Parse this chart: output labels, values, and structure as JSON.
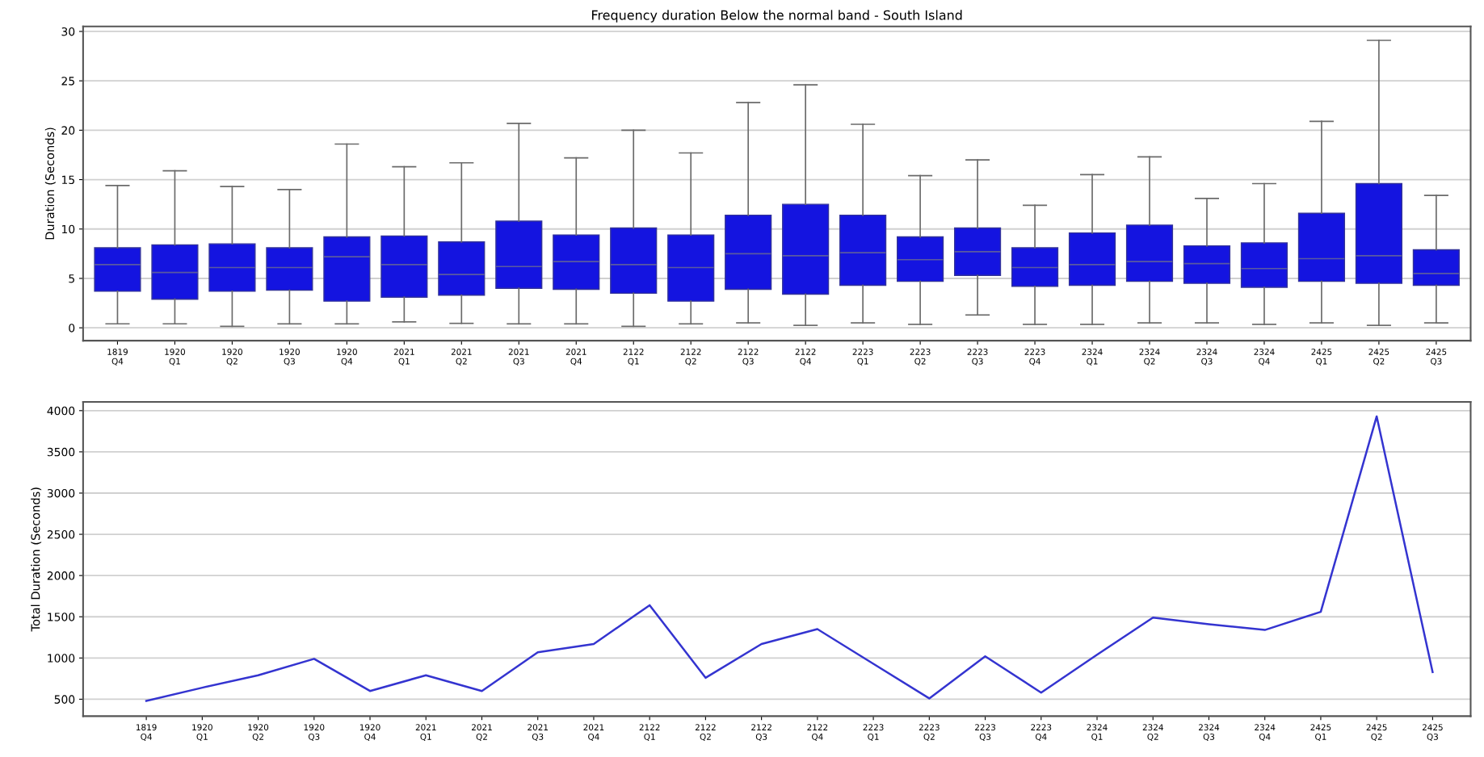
{
  "chart_data": [
    {
      "type": "box",
      "title": "Frequency duration Below the normal band - South Island",
      "ylabel": "Duration (Seconds)",
      "categories": [
        "1819\nQ4",
        "1920\nQ1",
        "1920\nQ2",
        "1920\nQ3",
        "1920\nQ4",
        "2021\nQ1",
        "2021\nQ2",
        "2021\nQ3",
        "2021\nQ4",
        "2122\nQ1",
        "2122\nQ2",
        "2122\nQ3",
        "2122\nQ4",
        "2223\nQ1",
        "2223\nQ2",
        "2223\nQ3",
        "2223\nQ4",
        "2324\nQ1",
        "2324\nQ2",
        "2324\nQ3",
        "2324\nQ4",
        "2425\nQ1",
        "2425\nQ2",
        "2425\nQ3"
      ],
      "color": "#1414e0",
      "boxes": [
        {
          "low": 0.4,
          "q1": 3.7,
          "median": 6.4,
          "q3": 8.1,
          "high": 14.4
        },
        {
          "low": 0.4,
          "q1": 2.9,
          "median": 5.6,
          "q3": 8.4,
          "high": 15.9
        },
        {
          "low": 0.15,
          "q1": 3.7,
          "median": 6.1,
          "q3": 8.5,
          "high": 14.3
        },
        {
          "low": 0.4,
          "q1": 3.8,
          "median": 6.1,
          "q3": 8.1,
          "high": 14.0
        },
        {
          "low": 0.4,
          "q1": 2.7,
          "median": 7.2,
          "q3": 9.2,
          "high": 18.6
        },
        {
          "low": 0.6,
          "q1": 3.1,
          "median": 6.4,
          "q3": 9.3,
          "high": 16.3
        },
        {
          "low": 0.45,
          "q1": 3.3,
          "median": 5.4,
          "q3": 8.7,
          "high": 16.7
        },
        {
          "low": 0.4,
          "q1": 4.0,
          "median": 6.2,
          "q3": 10.8,
          "high": 20.7
        },
        {
          "low": 0.4,
          "q1": 3.9,
          "median": 6.7,
          "q3": 9.4,
          "high": 17.2
        },
        {
          "low": 0.15,
          "q1": 3.5,
          "median": 6.4,
          "q3": 10.1,
          "high": 20.0
        },
        {
          "low": 0.4,
          "q1": 2.7,
          "median": 6.1,
          "q3": 9.4,
          "high": 17.7
        },
        {
          "low": 0.5,
          "q1": 3.9,
          "median": 7.5,
          "q3": 11.4,
          "high": 22.8
        },
        {
          "low": 0.25,
          "q1": 3.4,
          "median": 7.3,
          "q3": 12.5,
          "high": 24.6
        },
        {
          "low": 0.5,
          "q1": 4.3,
          "median": 7.6,
          "q3": 11.4,
          "high": 20.6
        },
        {
          "low": 0.35,
          "q1": 4.7,
          "median": 6.9,
          "q3": 9.2,
          "high": 15.4
        },
        {
          "low": 1.3,
          "q1": 5.3,
          "median": 7.7,
          "q3": 10.1,
          "high": 17.0
        },
        {
          "low": 0.35,
          "q1": 4.2,
          "median": 6.1,
          "q3": 8.1,
          "high": 12.4
        },
        {
          "low": 0.35,
          "q1": 4.3,
          "median": 6.4,
          "q3": 9.6,
          "high": 15.5
        },
        {
          "low": 0.5,
          "q1": 4.7,
          "median": 6.7,
          "q3": 10.4,
          "high": 17.3
        },
        {
          "low": 0.5,
          "q1": 4.5,
          "median": 6.5,
          "q3": 8.3,
          "high": 13.1
        },
        {
          "low": 0.35,
          "q1": 4.1,
          "median": 6.0,
          "q3": 8.6,
          "high": 14.6
        },
        {
          "low": 0.5,
          "q1": 4.7,
          "median": 7.0,
          "q3": 11.6,
          "high": 20.9
        },
        {
          "low": 0.25,
          "q1": 4.5,
          "median": 7.3,
          "q3": 14.6,
          "high": 29.1
        },
        {
          "low": 0.5,
          "q1": 4.3,
          "median": 5.5,
          "q3": 7.9,
          "high": 13.4
        }
      ],
      "ylim": [
        -1.3,
        30.5
      ],
      "yticks": [
        0,
        5,
        10,
        15,
        20,
        25,
        30
      ],
      "grid": "y"
    },
    {
      "type": "line",
      "ylabel": "Total Duration (Seconds)",
      "categories": [
        "1819\nQ4",
        "1920\nQ1",
        "1920\nQ2",
        "1920\nQ3",
        "1920\nQ4",
        "2021\nQ1",
        "2021\nQ2",
        "2021\nQ3",
        "2021\nQ4",
        "2122\nQ1",
        "2122\nQ2",
        "2122\nQ3",
        "2122\nQ4",
        "2223\nQ1",
        "2223\nQ2",
        "2223\nQ3",
        "2223\nQ4",
        "2324\nQ1",
        "2324\nQ2",
        "2324\nQ3",
        "2324\nQ4",
        "2425\nQ1",
        "2425\nQ2",
        "2425\nQ3"
      ],
      "color": "#3434d0",
      "values": [
        480,
        640,
        790,
        990,
        600,
        790,
        600,
        1070,
        1170,
        1640,
        760,
        1170,
        1350,
        930,
        510,
        1020,
        580,
        1040,
        1490,
        1410,
        1340,
        1560,
        3930,
        830
      ],
      "ylim": [
        295,
        4105
      ],
      "yticks": [
        500,
        1000,
        1500,
        2000,
        2500,
        3000,
        3500,
        4000
      ],
      "grid": "y"
    }
  ]
}
